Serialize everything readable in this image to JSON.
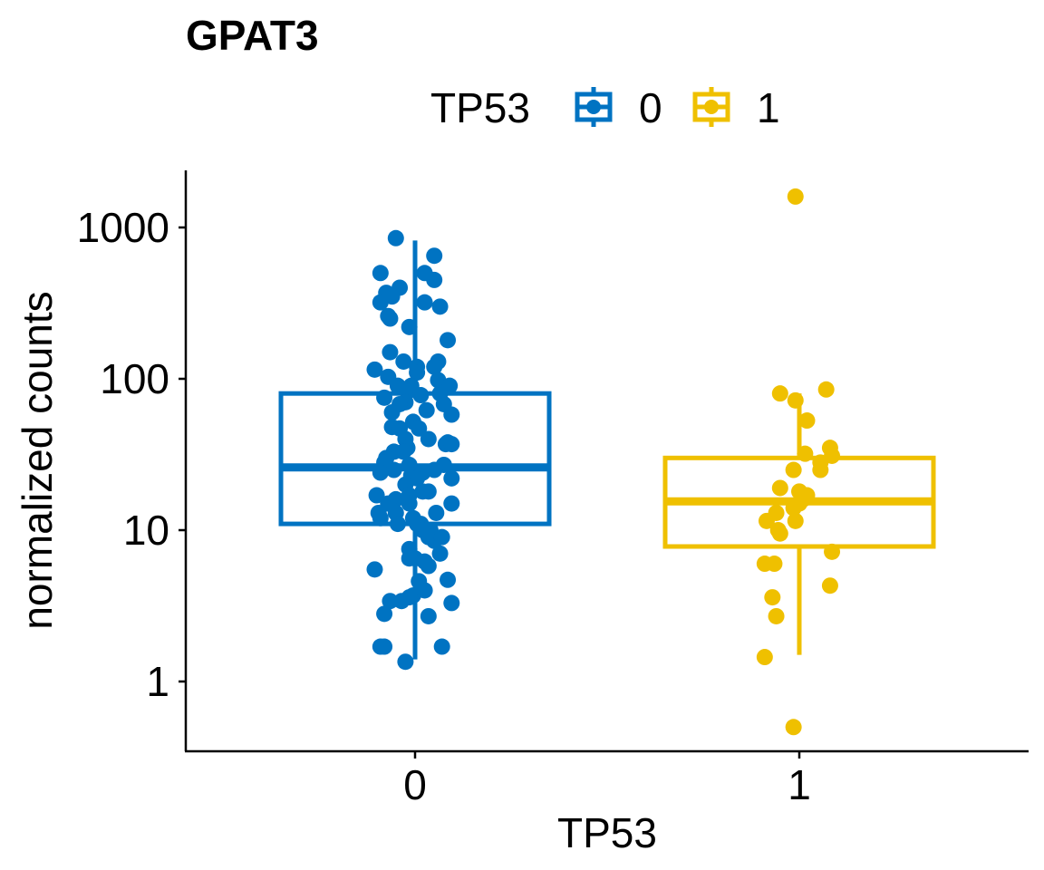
{
  "chart_data": {
    "type": "box",
    "title": "GPAT3",
    "xlabel": "TP53",
    "ylabel": "normalized counts",
    "y_scale": "log10",
    "ylim": [
      0.42,
      2300
    ],
    "y_ticks": [
      1,
      10,
      100,
      1000
    ],
    "y_tick_labels": [
      "1",
      "10",
      "100",
      "1000"
    ],
    "categories": [
      "0",
      "1"
    ],
    "legend": {
      "title": "TP53",
      "position": "top",
      "entries": [
        "0",
        "1"
      ]
    },
    "grid": false,
    "series": [
      {
        "name": "0",
        "color": "#0073C2",
        "box": {
          "min": 1.4,
          "q1": 11,
          "median": 26,
          "q3": 80,
          "max": 820
        },
        "points": [
          [
            -0.1,
            850
          ],
          [
            0.1,
            650
          ],
          [
            -0.18,
            500
          ],
          [
            0.05,
            500
          ],
          [
            0.1,
            450
          ],
          [
            -0.08,
            400
          ],
          [
            -0.15,
            370
          ],
          [
            -0.12,
            350
          ],
          [
            -0.18,
            320
          ],
          [
            0.05,
            320
          ],
          [
            0.13,
            300
          ],
          [
            -0.14,
            260
          ],
          [
            -0.13,
            250
          ],
          [
            -0.03,
            220
          ],
          [
            0.17,
            180
          ],
          [
            -0.13,
            150
          ],
          [
            -0.06,
            130
          ],
          [
            0.12,
            130
          ],
          [
            0.1,
            120
          ],
          [
            0.01,
            120
          ],
          [
            -0.21,
            115
          ],
          [
            0.01,
            110
          ],
          [
            -0.14,
            103
          ],
          [
            0.12,
            98
          ],
          [
            -0.09,
            90
          ],
          [
            -0.02,
            90
          ],
          [
            0.18,
            90
          ],
          [
            -0.04,
            82
          ],
          [
            0.03,
            78
          ],
          [
            0.13,
            80
          ],
          [
            -0.16,
            75
          ],
          [
            -0.05,
            70
          ],
          [
            0.15,
            68
          ],
          [
            -0.08,
            68
          ],
          [
            0.06,
            62
          ],
          [
            -0.12,
            60
          ],
          [
            0.19,
            58
          ],
          [
            -0.01,
            52
          ],
          [
            -0.12,
            48
          ],
          [
            0.02,
            47
          ],
          [
            -0.08,
            47
          ],
          [
            -0.05,
            40
          ],
          [
            0.07,
            40
          ],
          [
            0.17,
            38
          ],
          [
            0.16,
            37
          ],
          [
            0.19,
            37
          ],
          [
            -0.04,
            35
          ],
          [
            -0.11,
            33
          ],
          [
            -0.06,
            33
          ],
          [
            -0.15,
            30
          ],
          [
            -0.16,
            28
          ],
          [
            0.15,
            27
          ],
          [
            -0.03,
            27
          ],
          [
            0.1,
            25
          ],
          [
            0.04,
            24
          ],
          [
            -0.11,
            25
          ],
          [
            -0.18,
            24
          ],
          [
            -0.02,
            23
          ],
          [
            0.01,
            22
          ],
          [
            -0.05,
            20
          ],
          [
            0.19,
            22
          ],
          [
            -0.03,
            17
          ],
          [
            0.04,
            18
          ],
          [
            0.07,
            18
          ],
          [
            -0.2,
            17
          ],
          [
            -0.1,
            16
          ],
          [
            -0.14,
            15
          ],
          [
            -0.03,
            15
          ],
          [
            0.19,
            15
          ],
          [
            0.11,
            13
          ],
          [
            -0.19,
            13
          ],
          [
            -0.1,
            13
          ],
          [
            -0.01,
            12
          ],
          [
            0.03,
            11
          ],
          [
            0.01,
            11
          ],
          [
            -0.18,
            12
          ],
          [
            0.08,
            10
          ],
          [
            -0.09,
            11
          ],
          [
            0.04,
            10
          ],
          [
            0.09,
            9
          ],
          [
            0.1,
            8.5
          ],
          [
            0.07,
            9
          ],
          [
            0.14,
            9
          ],
          [
            0.13,
            7
          ],
          [
            -0.03,
            7.5
          ],
          [
            0.0,
            6.5
          ],
          [
            -0.03,
            6.5
          ],
          [
            0.05,
            6.2
          ],
          [
            0.07,
            5.8
          ],
          [
            -0.21,
            5.5
          ],
          [
            0.17,
            4.7
          ],
          [
            0.02,
            4.6
          ],
          [
            0.05,
            4
          ],
          [
            -0.01,
            3.7
          ],
          [
            -0.03,
            3.6
          ],
          [
            -0.07,
            3.4
          ],
          [
            -0.13,
            3.4
          ],
          [
            0.19,
            3.3
          ],
          [
            -0.16,
            2.8
          ],
          [
            0.07,
            2.7
          ],
          [
            -0.18,
            1.7
          ],
          [
            -0.16,
            1.7
          ],
          [
            0.14,
            1.7
          ],
          [
            -0.05,
            1.35
          ]
        ]
      },
      {
        "name": "1",
        "color": "#EFC000",
        "box": {
          "min": 1.5,
          "q1": 7.8,
          "median": 15.5,
          "q3": 30,
          "max": 80
        },
        "points": [
          [
            -0.02,
            1600
          ],
          [
            0.14,
            85
          ],
          [
            -0.1,
            80
          ],
          [
            -0.02,
            72
          ],
          [
            0.04,
            53
          ],
          [
            0.16,
            35
          ],
          [
            0.03,
            32
          ],
          [
            0.17,
            31
          ],
          [
            0.11,
            28
          ],
          [
            0.11,
            25
          ],
          [
            -0.03,
            25
          ],
          [
            -0.1,
            19
          ],
          [
            0.0,
            18
          ],
          [
            0.04,
            17
          ],
          [
            0.02,
            16
          ],
          [
            0.0,
            15
          ],
          [
            -0.03,
            14
          ],
          [
            -0.12,
            13
          ],
          [
            -0.17,
            11.5
          ],
          [
            -0.02,
            11.5
          ],
          [
            -0.11,
            10
          ],
          [
            -0.1,
            9.5
          ],
          [
            0.17,
            7.2
          ],
          [
            -0.18,
            6
          ],
          [
            -0.13,
            6
          ],
          [
            0.16,
            4.3
          ],
          [
            -0.14,
            3.6
          ],
          [
            -0.12,
            2.7
          ],
          [
            -0.18,
            1.45
          ],
          [
            -0.03,
            0.5
          ]
        ]
      }
    ]
  }
}
